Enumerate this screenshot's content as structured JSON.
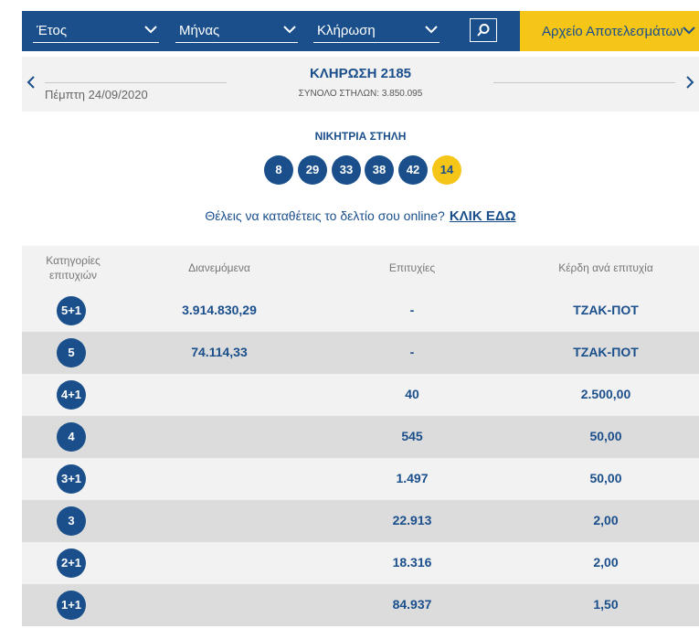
{
  "filters": {
    "year_label": "Έτος",
    "month_label": "Μήνας",
    "draw_label": "Κλήρωση",
    "archive_label": "Αρχείο Αποτελεσμάτων"
  },
  "draw": {
    "date": "Πέμπτη 24/09/2020",
    "title": "ΚΛΗΡΩΣΗ 2185",
    "total_columns": "ΣΥΝΟΛΟ ΣΤΗΛΩΝ: 3.850.095"
  },
  "winning": {
    "title": "ΝΙΚΗΤΡΙΑ ΣΤΗΛΗ",
    "numbers": [
      "8",
      "29",
      "33",
      "38",
      "42"
    ],
    "joker": "14"
  },
  "promo": {
    "text": "Θέλεις να καταθέτεις το δελτίο σου online?",
    "link": "ΚΛΙΚ ΕΔΩ"
  },
  "table": {
    "headers": [
      "Κατηγορίες επιτυχιών",
      "Διανεμόμενα",
      "Επιτυχίες",
      "Κέρδη ανά επιτυχία"
    ],
    "rows": [
      {
        "category": "5+1",
        "distributed": "3.914.830,29",
        "winners": "-",
        "prize": "ΤΖΑΚ-ΠΟΤ"
      },
      {
        "category": "5",
        "distributed": "74.114,33",
        "winners": "-",
        "prize": "ΤΖΑΚ-ΠΟΤ"
      },
      {
        "category": "4+1",
        "distributed": "",
        "winners": "40",
        "prize": "2.500,00"
      },
      {
        "category": "4",
        "distributed": "",
        "winners": "545",
        "prize": "50,00"
      },
      {
        "category": "3+1",
        "distributed": "",
        "winners": "1.497",
        "prize": "50,00"
      },
      {
        "category": "3",
        "distributed": "",
        "winners": "22.913",
        "prize": "2,00"
      },
      {
        "category": "2+1",
        "distributed": "",
        "winners": "18.316",
        "prize": "2,00"
      },
      {
        "category": "1+1",
        "distributed": "",
        "winners": "84.937",
        "prize": "1,50"
      }
    ]
  },
  "colors": {
    "brand_blue": "#1a4f8b",
    "accent_yellow": "#f5c518"
  }
}
